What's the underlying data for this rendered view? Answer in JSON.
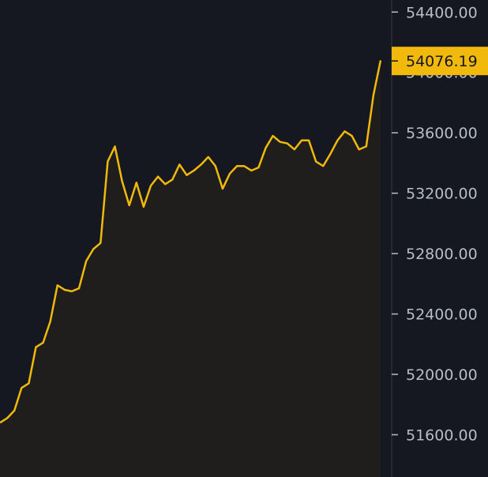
{
  "chart_data": {
    "type": "area",
    "title": "",
    "xlabel": "",
    "ylabel": "",
    "ylim": [
      51320,
      54480
    ],
    "y_ticks": [
      "54400.00",
      "54000.00",
      "53600.00",
      "53200.00",
      "52800.00",
      "52400.00",
      "52000.00",
      "51600.00"
    ],
    "y_tick_values": [
      54400,
      54000,
      53600,
      53200,
      52800,
      52400,
      52000,
      51600
    ],
    "current_price_label": "54076.19",
    "current_price": 54076.19,
    "grid": false,
    "colors": {
      "background": "#151821",
      "line": "#f0b90b",
      "area_fill": "#1f1e1d",
      "axis_line": "#2b3139",
      "tick_text": "#b7bdc6",
      "price_tag_bg": "#f0b90b",
      "price_tag_text": "#151821"
    },
    "series": [
      {
        "values": [
          51680,
          51710,
          51760,
          51910,
          51940,
          52180,
          52210,
          52350,
          52590,
          52560,
          52550,
          52570,
          52750,
          52830,
          52870,
          53410,
          53510,
          53280,
          53120,
          53270,
          53110,
          53250,
          53310,
          53260,
          53290,
          53390,
          53320,
          53350,
          53390,
          53440,
          53380,
          53230,
          53330,
          53380,
          53380,
          53350,
          53370,
          53500,
          53580,
          53540,
          53530,
          53490,
          53550,
          53550,
          53410,
          53380,
          53460,
          53550,
          53610,
          53580,
          53490,
          53510,
          53850,
          54080
        ]
      }
    ]
  }
}
